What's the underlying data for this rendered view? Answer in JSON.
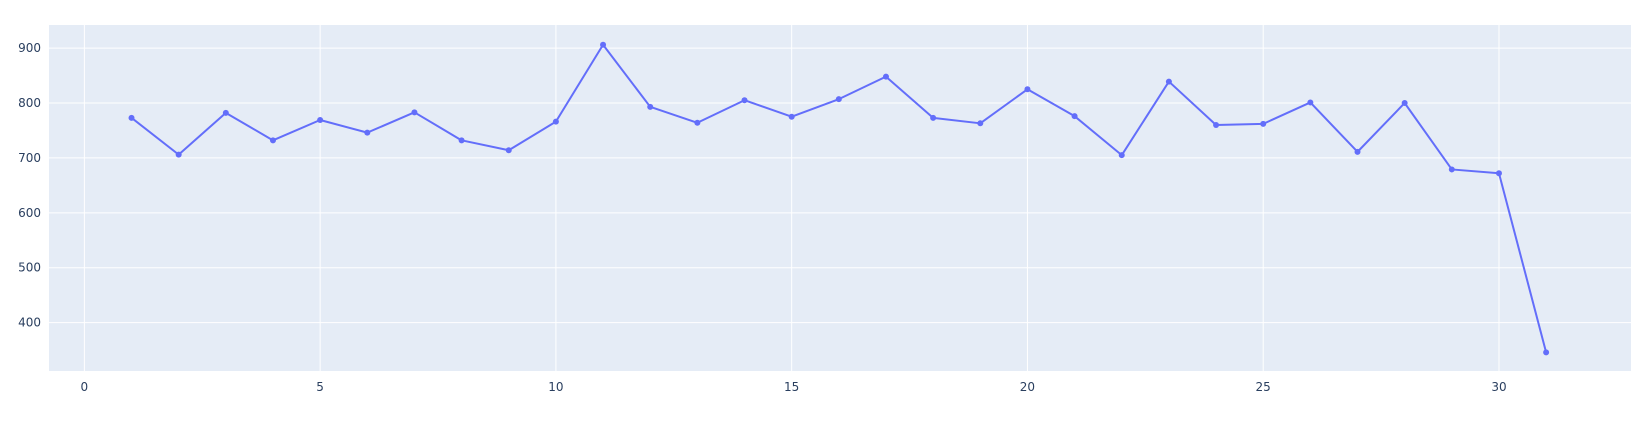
{
  "chart_data": {
    "type": "line",
    "title": "",
    "xlabel": "",
    "ylabel": "",
    "x": [
      1,
      2,
      3,
      4,
      5,
      6,
      7,
      8,
      9,
      10,
      11,
      12,
      13,
      14,
      15,
      16,
      17,
      18,
      19,
      20,
      21,
      22,
      23,
      24,
      25,
      26,
      27,
      28,
      29,
      30,
      31
    ],
    "series": [
      {
        "values": [
          773,
          706,
          782,
          732,
          769,
          746,
          783,
          732,
          714,
          766,
          906,
          793,
          764,
          805,
          775,
          807,
          848,
          773,
          763,
          825,
          776,
          705,
          839,
          760,
          762,
          801,
          711,
          800,
          679,
          672,
          346
        ]
      }
    ],
    "xlim": [
      -0.75,
      32.8
    ],
    "ylim": [
      312,
      942
    ],
    "x_ticks": [
      0,
      5,
      10,
      15,
      20,
      25,
      30
    ],
    "y_ticks": [
      400,
      500,
      600,
      700,
      800,
      900
    ],
    "x_tick_labels": [
      "0",
      "5",
      "10",
      "15",
      "20",
      "25",
      "30"
    ],
    "y_tick_labels": [
      "400",
      "500",
      "600",
      "700",
      "800",
      "900"
    ],
    "grid": true,
    "markers": true,
    "colors": {
      "line": "#636efa",
      "plot_background": "#e5ecf6",
      "grid": "#ffffff",
      "tick_text": "#2a3f5f"
    }
  }
}
